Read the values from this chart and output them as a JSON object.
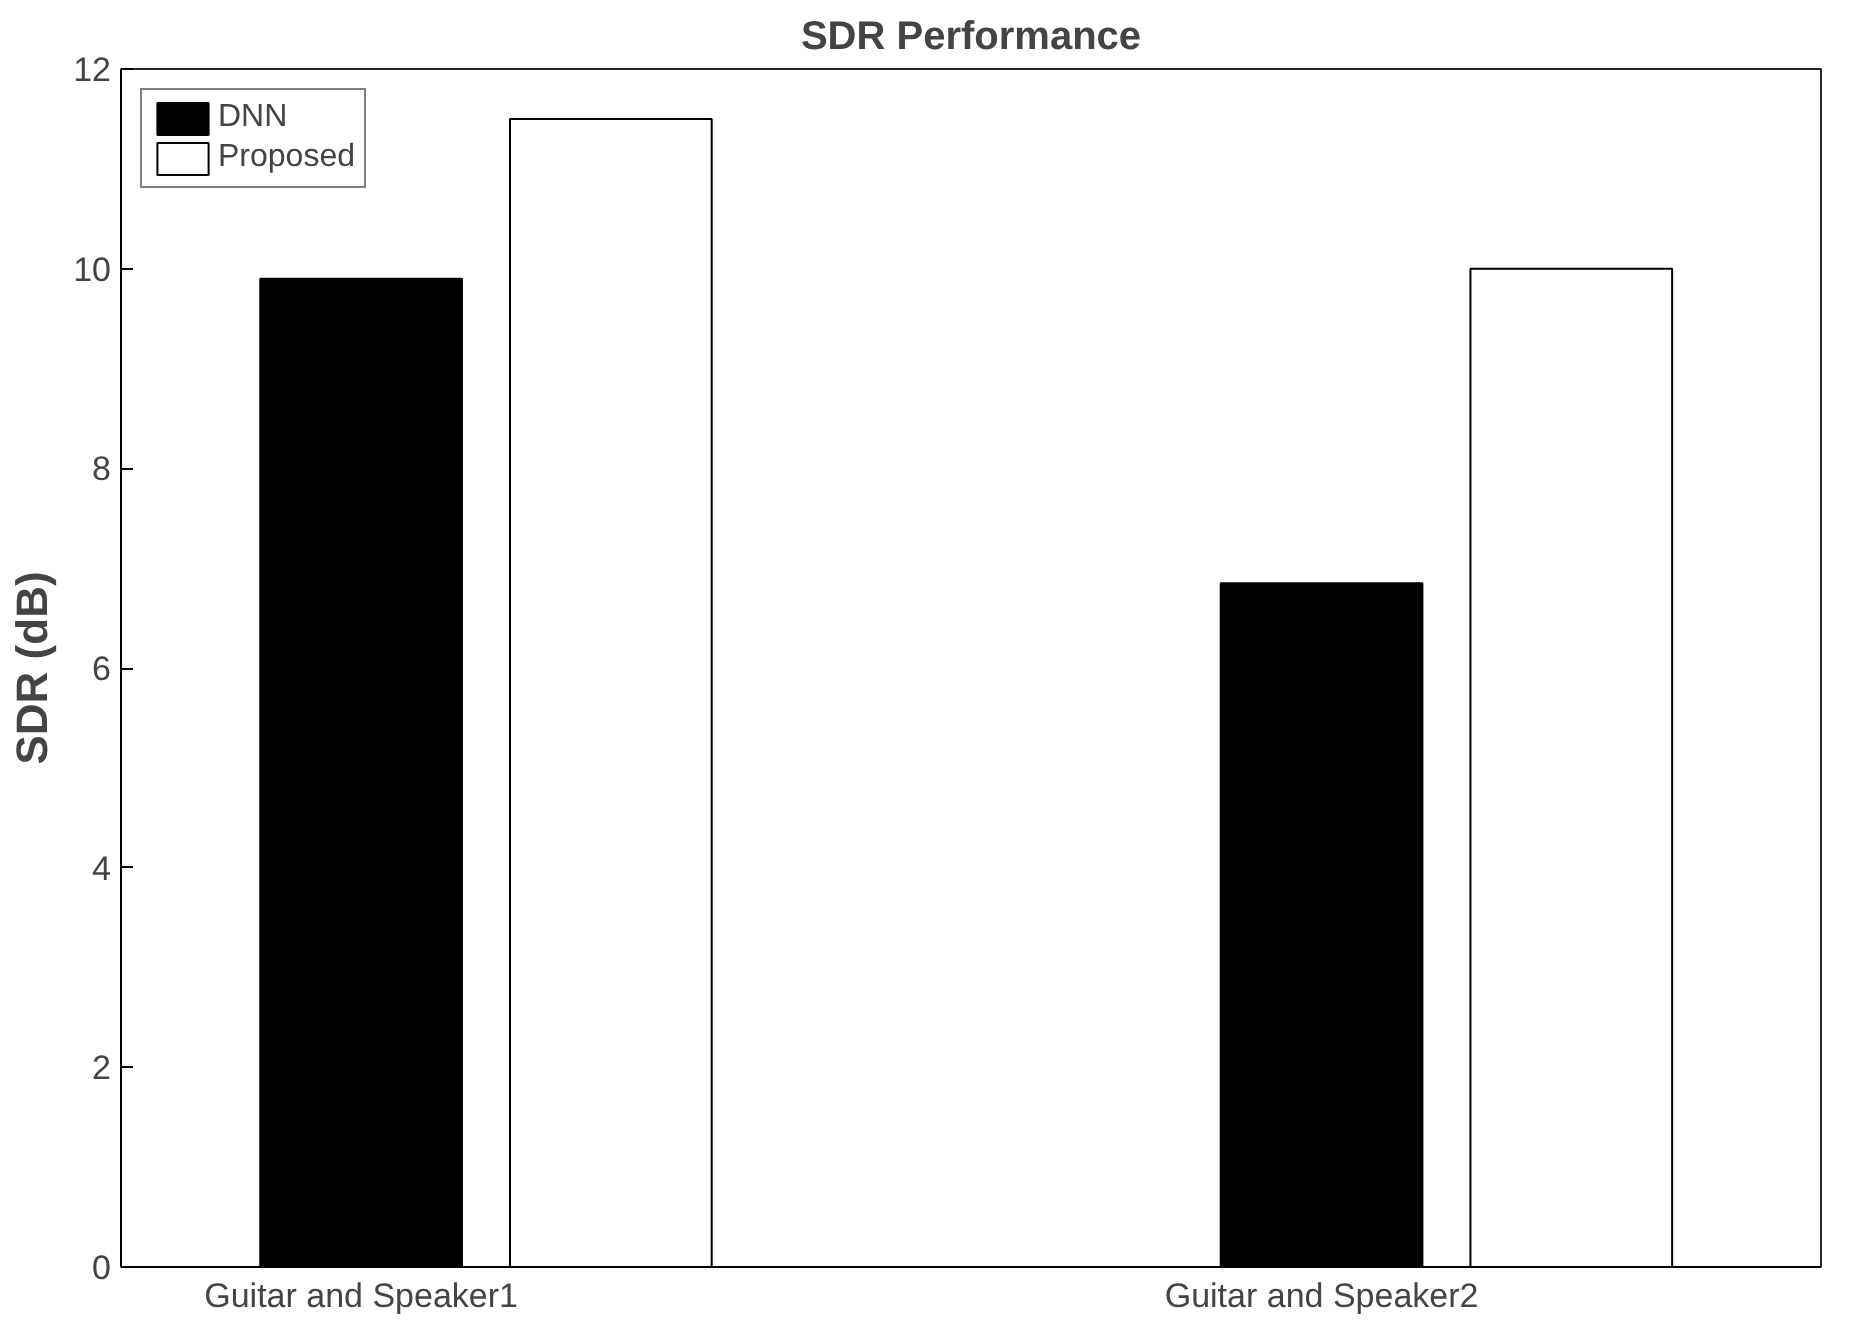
{
  "chart_data": {
    "type": "bar",
    "title": "SDR Performance",
    "ylabel": "SDR (dB)",
    "categories": [
      "Guitar and Speaker1",
      "Guitar and Speaker2"
    ],
    "series": [
      {
        "name": "DNN",
        "color": "#000000",
        "values": [
          9.9,
          6.85
        ]
      },
      {
        "name": "Proposed",
        "color": "#ffffff",
        "values": [
          11.5,
          10.0
        ]
      }
    ],
    "ylim": [
      0,
      12
    ],
    "yticks": [
      0,
      2,
      4,
      6,
      8,
      10,
      12
    ],
    "grid": false,
    "legend": "top left"
  }
}
